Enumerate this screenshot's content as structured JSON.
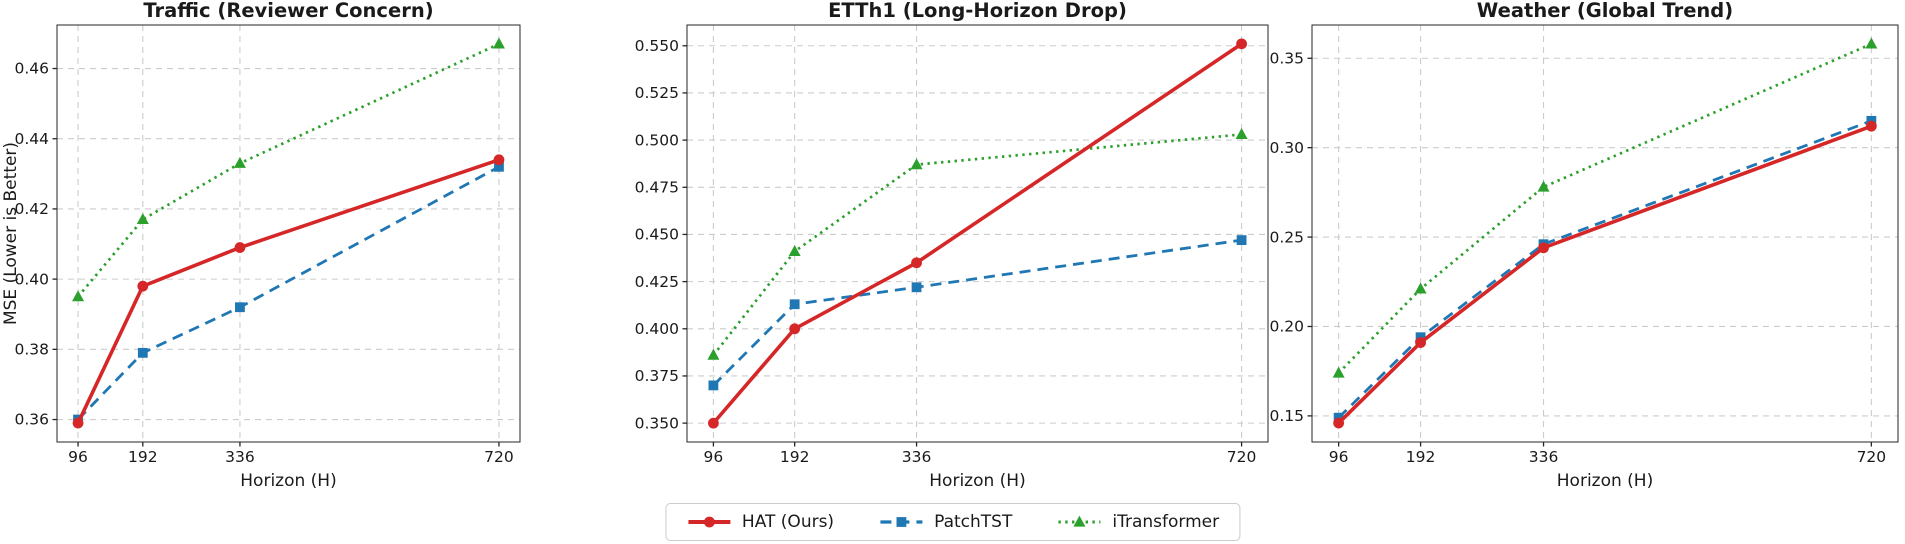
{
  "figure": {
    "background": "#ffffff",
    "text_color": "#1a1a1a",
    "spine_color": "#262626",
    "grid_color": "#cccccc"
  },
  "legend": {
    "items": [
      {
        "label": "HAT (Ours)",
        "color": "#d62728",
        "marker": "circle",
        "line": "solid"
      },
      {
        "label": "PatchTST",
        "color": "#1f77b4",
        "marker": "square",
        "line": "dashed"
      },
      {
        "label": "iTransformer",
        "color": "#2ca02c",
        "marker": "triangle",
        "line": "dotted"
      }
    ]
  },
  "chart_data": [
    {
      "type": "line",
      "id": "traffic",
      "title": "Traffic (Reviewer Concern)",
      "xlabel": "Horizon (H)",
      "ylabel": "MSE (Lower is Better)",
      "x": [
        96,
        192,
        336,
        720
      ],
      "xticks": [
        96,
        192,
        336,
        720
      ],
      "xlim": [
        64.8,
        751.2
      ],
      "yticks": [
        0.36,
        0.38,
        0.4,
        0.42,
        0.44,
        0.46
      ],
      "ytick_decimals": 2,
      "ylim": [
        0.3536,
        0.4724
      ],
      "grid": true,
      "legend_position": "figure-bottom-center",
      "series": [
        {
          "name": "HAT (Ours)",
          "color": "#d62728",
          "marker": "circle",
          "line": "solid",
          "values": [
            0.359,
            0.398,
            0.409,
            0.434
          ]
        },
        {
          "name": "PatchTST",
          "color": "#1f77b4",
          "marker": "square",
          "line": "dashed",
          "values": [
            0.36,
            0.379,
            0.392,
            0.432
          ]
        },
        {
          "name": "iTransformer",
          "color": "#2ca02c",
          "marker": "triangle",
          "line": "dotted",
          "values": [
            0.395,
            0.417,
            0.433,
            0.467
          ]
        }
      ]
    },
    {
      "type": "line",
      "id": "etth1",
      "title": "ETTh1 (Long-Horizon Drop)",
      "xlabel": "Horizon (H)",
      "ylabel": "",
      "x": [
        96,
        192,
        336,
        720
      ],
      "xticks": [
        96,
        192,
        336,
        720
      ],
      "xlim": [
        64.8,
        751.2
      ],
      "yticks": [
        0.35,
        0.375,
        0.4,
        0.425,
        0.45,
        0.475,
        0.5,
        0.525,
        0.55
      ],
      "ytick_decimals": 3,
      "ylim": [
        0.34,
        0.561
      ],
      "grid": true,
      "series": [
        {
          "name": "HAT (Ours)",
          "color": "#d62728",
          "marker": "circle",
          "line": "solid",
          "values": [
            0.35,
            0.4,
            0.435,
            0.551
          ]
        },
        {
          "name": "PatchTST",
          "color": "#1f77b4",
          "marker": "square",
          "line": "dashed",
          "values": [
            0.37,
            0.413,
            0.422,
            0.447
          ]
        },
        {
          "name": "iTransformer",
          "color": "#2ca02c",
          "marker": "triangle",
          "line": "dotted",
          "values": [
            0.386,
            0.441,
            0.487,
            0.503
          ]
        }
      ]
    },
    {
      "type": "line",
      "id": "weather",
      "title": "Weather (Global Trend)",
      "xlabel": "Horizon (H)",
      "ylabel": "",
      "x": [
        96,
        192,
        336,
        720
      ],
      "xticks": [
        96,
        192,
        336,
        720
      ],
      "xlim": [
        64.8,
        751.2
      ],
      "yticks": [
        0.15,
        0.2,
        0.25,
        0.3,
        0.35
      ],
      "ytick_decimals": 2,
      "ylim": [
        0.1354,
        0.3686
      ],
      "grid": true,
      "series": [
        {
          "name": "HAT (Ours)",
          "color": "#d62728",
          "marker": "circle",
          "line": "solid",
          "values": [
            0.146,
            0.191,
            0.244,
            0.312
          ]
        },
        {
          "name": "PatchTST",
          "color": "#1f77b4",
          "marker": "square",
          "line": "dashed",
          "values": [
            0.149,
            0.194,
            0.246,
            0.315
          ]
        },
        {
          "name": "iTransformer",
          "color": "#2ca02c",
          "marker": "triangle",
          "line": "dotted",
          "values": [
            0.174,
            0.221,
            0.278,
            0.358
          ]
        }
      ]
    }
  ]
}
